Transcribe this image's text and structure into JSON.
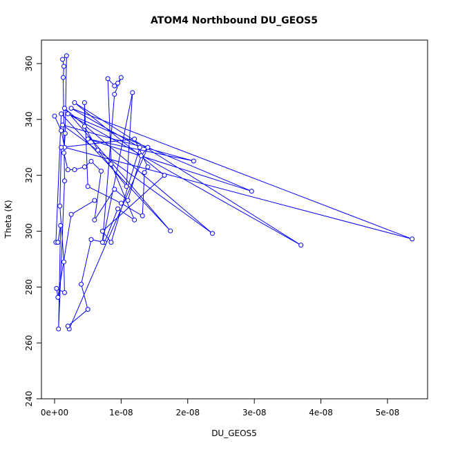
{
  "chart_data": {
    "type": "line",
    "title": "ATOM4 Northbound DU_GEOS5",
    "x_label": "DU_GEOS5",
    "y_label": "Theta (K)",
    "color": "#0000ff",
    "x": [
      0.0,
      1e-09,
      1.5e-09,
      5.37e-08,
      2.5e-09,
      1.28e-08,
      8.5e-09,
      7.2e-09,
      1.65e-08,
      3e-09,
      3.7e-08,
      2e-09,
      2.96e-08,
      5e-09,
      2.09e-08,
      1.2e-09,
      2.37e-08,
      1.5e-09,
      1.74e-08,
      1e-09,
      2e-10,
      5e-10,
      9e-10,
      6e-10,
      1.5e-09,
      1.3e-09,
      1.4e-09,
      1.2e-09,
      1.8e-09,
      1.6e-09,
      1.4e-09,
      2e-09,
      3e-09,
      4.5e-09,
      5.5e-09,
      7e-09,
      6e-09,
      9e-09,
      1.1e-08,
      1.3e-08,
      1.4e-08,
      2.2e-09,
      2e-09,
      5e-09,
      4e-09,
      5.5e-09,
      7.5e-09,
      9.5e-09,
      1.2e-08,
      8.5e-09,
      8e-09,
      9e-09,
      9.5e-09,
      1e-08,
      9e-09,
      7.2e-09,
      1.17e-08,
      1.08e-08,
      6.5e-09,
      4.5e-09,
      4.5e-09,
      5e-09,
      1e-08,
      1.32e-08,
      1.35e-08,
      1.4e-08,
      1.2e-08,
      1e-09,
      8e-10,
      1.4e-09,
      1.5e-09,
      3e-10,
      5e-10,
      2.5e-09,
      6e-09
    ],
    "values": [
      341.2,
      336,
      330,
      297.2,
      344,
      330,
      296,
      300,
      320,
      346,
      295,
      342,
      314.3,
      333,
      325.1,
      338,
      299.2,
      344,
      300.1,
      342,
      296,
      296,
      302,
      265,
      318,
      355,
      359,
      361.5,
      362.8,
      335,
      328,
      322,
      322,
      323,
      325,
      321.5,
      304,
      315,
      311,
      327,
      330,
      265,
      266,
      272,
      281,
      297,
      296,
      308,
      304,
      324,
      354.6,
      352,
      353,
      355,
      349,
      296,
      349.6,
      316,
      329,
      337.5,
      346,
      316,
      310,
      305.5,
      321,
      323,
      333,
      330,
      309,
      289,
      278,
      279.5,
      276.3,
      306,
      311
    ],
    "xlim": [
      -1.97e-09,
      5.602e-08
    ],
    "ylim": [
      240,
      368.4
    ],
    "xticks": [
      {
        "value": 0,
        "label": "0e+00"
      },
      {
        "value": 1e-08,
        "label": "1e-08"
      },
      {
        "value": 2e-08,
        "label": "2e-08"
      },
      {
        "value": 3e-08,
        "label": "3e-08"
      },
      {
        "value": 4e-08,
        "label": "4e-08"
      },
      {
        "value": 5e-08,
        "label": "5e-08"
      }
    ],
    "yticks": [
      240,
      260,
      280,
      300,
      320,
      340,
      360
    ]
  }
}
